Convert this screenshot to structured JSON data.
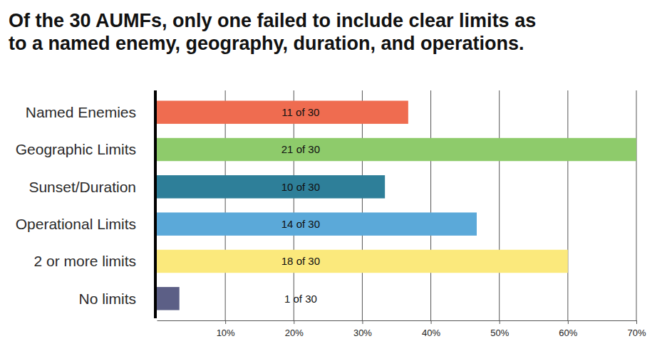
{
  "chart_data": {
    "type": "bar",
    "orientation": "horizontal",
    "title": [
      "Of the 30 AUMFs, only one failed to include clear limits as",
      "to a named enemy, geography, duration, and operations."
    ],
    "categories": [
      "Named Enemies",
      "Geographic Limits",
      "Sunset/Duration",
      "Operational Limits",
      "2 or more limits",
      "No limits"
    ],
    "values": [
      36.7,
      70,
      33.3,
      46.7,
      60,
      3.3
    ],
    "value_labels": [
      "11 of 30",
      "21 of 30",
      "10 of 30",
      "14 of 30",
      "18 of 30",
      "1 of 30"
    ],
    "colors": [
      "#ef6c50",
      "#8ecb6b",
      "#2e7f99",
      "#5ba9d9",
      "#fbe97c",
      "#5c5f86"
    ],
    "data_labels": true,
    "xlim": [
      0,
      70
    ],
    "xticks": [
      {
        "value": 10,
        "label": "10%"
      },
      {
        "value": 20,
        "label": "20%"
      },
      {
        "value": 30,
        "label": "30%"
      },
      {
        "value": 40,
        "label": "40%"
      },
      {
        "value": 50,
        "label": "50%"
      },
      {
        "value": 60,
        "label": "60%"
      },
      {
        "value": 70,
        "label": "70%"
      }
    ],
    "grid": true
  }
}
